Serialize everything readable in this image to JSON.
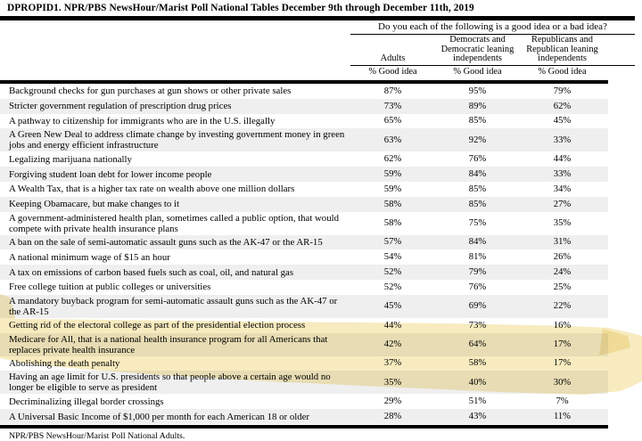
{
  "page": {
    "title": "DPROPID1. NPR/PBS NewsHour/Marist Poll National Tables December 9th through December 11th, 2019",
    "footer": "NPR/PBS NewsHour/Marist Poll National Adults."
  },
  "table": {
    "question": "Do you each of the following is a good idea or a bad idea?",
    "columns": [
      {
        "label": "Adults",
        "sub": "% Good idea"
      },
      {
        "label": "Democrats and\nDemocratic leaning\nindependents",
        "sub": "% Good idea"
      },
      {
        "label": "Republicans and\nRepublican leaning\nindependents",
        "sub": "% Good idea"
      }
    ],
    "rows": [
      {
        "label": "Background checks for gun purchases at gun shows or other private sales",
        "adults": "87%",
        "dem": "95%",
        "rep": "79%"
      },
      {
        "label": "Stricter government regulation of prescription drug prices",
        "adults": "73%",
        "dem": "89%",
        "rep": "62%"
      },
      {
        "label": "A pathway to citizenship for immigrants who are in the U.S. illegally",
        "adults": "65%",
        "dem": "85%",
        "rep": "45%"
      },
      {
        "label": "A Green New Deal to address climate change by investing government money in green jobs and energy efficient infrastructure",
        "adults": "63%",
        "dem": "92%",
        "rep": "33%"
      },
      {
        "label": "Legalizing marijuana nationally",
        "adults": "62%",
        "dem": "76%",
        "rep": "44%"
      },
      {
        "label": "Forgiving student loan debt for lower income people",
        "adults": "59%",
        "dem": "84%",
        "rep": "33%"
      },
      {
        "label": "A Wealth Tax, that is a higher tax rate on wealth above one million dollars",
        "adults": "59%",
        "dem": "85%",
        "rep": "34%"
      },
      {
        "label": "Keeping Obamacare, but make changes to it",
        "adults": "58%",
        "dem": "85%",
        "rep": "27%"
      },
      {
        "label": "A government-administered health plan, sometimes called a public option, that would compete with private health insurance plans",
        "adults": "58%",
        "dem": "75%",
        "rep": "35%"
      },
      {
        "label": "A ban on the sale of semi-automatic assault guns such as the AK-47 or the AR-15",
        "adults": "57%",
        "dem": "84%",
        "rep": "31%"
      },
      {
        "label": "A national minimum wage of $15 an hour",
        "adults": "54%",
        "dem": "81%",
        "rep": "26%"
      },
      {
        "label": "A tax on emissions of carbon based fuels such as coal, oil, and natural gas",
        "adults": "52%",
        "dem": "79%",
        "rep": "24%"
      },
      {
        "label": "Free college tuition at public colleges or universities",
        "adults": "52%",
        "dem": "76%",
        "rep": "25%"
      },
      {
        "label": "A mandatory buyback program for semi-automatic assault guns such as the AK-47 or the AR-15",
        "adults": "45%",
        "dem": "69%",
        "rep": "22%"
      },
      {
        "label": "Getting rid of the electoral college as part of the presidential election process",
        "adults": "44%",
        "dem": "73%",
        "rep": "16%"
      },
      {
        "label": "Medicare for All, that is a national health insurance program for all Americans that replaces private health insurance",
        "adults": "42%",
        "dem": "64%",
        "rep": "17%"
      },
      {
        "label": "Abolishing the death penalty",
        "adults": "37%",
        "dem": "58%",
        "rep": "17%"
      },
      {
        "label": "Having an age limit for U.S. presidents so that people above a certain age would no longer be eligible to serve as president",
        "adults": "35%",
        "dem": "40%",
        "rep": "30%"
      },
      {
        "label": "Decriminalizing illegal border crossings",
        "adults": "29%",
        "dem": "51%",
        "rep": "7%"
      },
      {
        "label": "A Universal Basic Income of $1,000 per month for each American 18 or older",
        "adults": "28%",
        "dem": "43%",
        "rep": "11%"
      }
    ]
  },
  "annotations": {
    "highlighted_row_indices": [
      14,
      15,
      16,
      17
    ],
    "highlight_color": "#efd87f",
    "highlight_fold_color": "#e3c35a"
  },
  "colors": {
    "zebra_stripe": "#efefef",
    "rule": "#000000",
    "text": "#000000"
  }
}
